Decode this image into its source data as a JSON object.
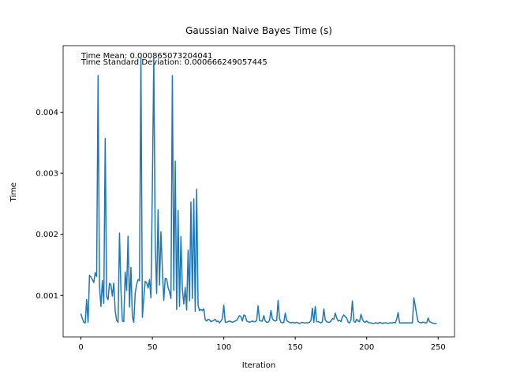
{
  "chart_data": {
    "type": "line",
    "title": "Gaussian Naive Bayes Time (s)",
    "xlabel": "Iteration",
    "ylabel": "Time",
    "annotations": [
      "Time Mean: 0.000865073204041",
      "Time Standard Deviation: 0.000666249057445"
    ],
    "x": [
      0,
      1,
      2,
      3,
      4,
      5,
      6,
      7,
      8,
      9,
      10,
      11,
      12,
      13,
      14,
      15,
      16,
      17,
      18,
      19,
      20,
      21,
      22,
      23,
      24,
      25,
      26,
      27,
      28,
      29,
      30,
      31,
      32,
      33,
      34,
      35,
      36,
      37,
      38,
      39,
      40,
      41,
      42,
      43,
      44,
      45,
      46,
      47,
      48,
      49,
      50,
      51,
      52,
      53,
      54,
      55,
      56,
      57,
      58,
      59,
      60,
      61,
      62,
      63,
      64,
      65,
      66,
      67,
      68,
      69,
      70,
      71,
      72,
      73,
      74,
      75,
      76,
      77,
      78,
      79,
      80,
      81,
      82,
      83,
      84,
      85,
      86,
      87,
      88,
      89,
      90,
      91,
      92,
      93,
      94,
      95,
      96,
      97,
      98,
      99,
      100,
      101,
      102,
      103,
      104,
      105,
      106,
      107,
      108,
      109,
      110,
      111,
      112,
      113,
      114,
      115,
      116,
      117,
      118,
      119,
      120,
      121,
      122,
      123,
      124,
      125,
      126,
      127,
      128,
      129,
      130,
      131,
      132,
      133,
      134,
      135,
      136,
      137,
      138,
      139,
      140,
      141,
      142,
      143,
      144,
      145,
      146,
      147,
      148,
      149,
      150,
      151,
      152,
      153,
      154,
      155,
      156,
      157,
      158,
      159,
      160,
      161,
      162,
      163,
      164,
      165,
      166,
      167,
      168,
      169,
      170,
      171,
      172,
      173,
      174,
      175,
      176,
      177,
      178,
      179,
      180,
      181,
      182,
      183,
      184,
      185,
      186,
      187,
      188,
      189,
      190,
      191,
      192,
      193,
      194,
      195,
      196,
      197,
      198,
      199,
      200,
      201,
      202,
      203,
      204,
      205,
      206,
      207,
      208,
      209,
      210,
      211,
      212,
      213,
      214,
      215,
      216,
      217,
      218,
      219,
      220,
      221,
      222,
      223,
      224,
      225,
      226,
      227,
      228,
      229,
      230,
      231,
      232,
      233,
      234,
      235,
      236,
      237,
      238,
      239,
      240,
      241,
      242,
      243,
      244,
      245,
      246,
      247,
      248,
      249
    ],
    "series": [
      {
        "color": "#1f77b4",
        "values": [
          0.0007,
          0.00062,
          0.00056,
          0.00055,
          0.00093,
          0.00056,
          0.00133,
          0.0013,
          0.00126,
          0.00121,
          0.00137,
          0.00131,
          0.0046,
          0.00115,
          0.00082,
          0.00124,
          0.00087,
          0.00357,
          0.00098,
          0.00093,
          0.0012,
          0.00117,
          0.00099,
          0.0012,
          0.00074,
          0.00059,
          0.00056,
          0.00202,
          0.0011,
          0.00058,
          0.00057,
          0.00138,
          0.00108,
          0.00197,
          0.00081,
          0.00146,
          0.00065,
          0.00056,
          0.00104,
          0.00118,
          0.00126,
          0.00124,
          0.0049,
          0.00064,
          0.00096,
          0.00123,
          0.00121,
          0.00112,
          0.00126,
          0.00096,
          0.00278,
          0.0049,
          0.00186,
          0.00103,
          0.0024,
          0.00117,
          0.00204,
          0.00142,
          0.00092,
          0.00128,
          0.00127,
          0.00113,
          0.00106,
          0.00095,
          0.0046,
          0.00108,
          0.0032,
          0.00077,
          0.00239,
          0.00082,
          0.00196,
          0.0011,
          0.00086,
          0.00113,
          0.00076,
          0.00174,
          0.00091,
          0.00253,
          0.00095,
          0.00258,
          0.00074,
          0.00274,
          0.00084,
          0.00075,
          0.00077,
          0.00075,
          0.00078,
          0.0006,
          0.00058,
          0.00061,
          0.0006,
          0.00057,
          0.00058,
          0.00059,
          0.00061,
          0.00057,
          0.00058,
          0.00055,
          0.00058,
          0.00062,
          0.00084,
          0.00056,
          0.00056,
          0.00057,
          0.00058,
          0.00057,
          0.00056,
          0.00057,
          0.00058,
          0.00059,
          0.00063,
          0.00067,
          0.00065,
          0.00058,
          0.00068,
          0.00067,
          0.00058,
          0.00057,
          0.00056,
          0.00057,
          0.00058,
          0.00057,
          0.00057,
          0.00059,
          0.00083,
          0.00059,
          0.00058,
          0.00058,
          0.00067,
          0.00058,
          0.00056,
          0.00056,
          0.00059,
          0.00075,
          0.00062,
          0.00059,
          0.00058,
          0.00059,
          0.00092,
          0.00062,
          0.00056,
          0.00055,
          0.00056,
          0.00071,
          0.00059,
          0.00057,
          0.00056,
          0.00055,
          0.00056,
          0.00055,
          0.00055,
          0.00056,
          0.00055,
          0.00054,
          0.00055,
          0.00056,
          0.00055,
          0.00055,
          0.00055,
          0.00055,
          0.00056,
          0.00059,
          0.00079,
          0.00056,
          0.00082,
          0.00057,
          0.00057,
          0.00056,
          0.00055,
          0.00057,
          0.00078,
          0.0006,
          0.00057,
          0.00056,
          0.00056,
          0.00058,
          0.00062,
          0.00061,
          0.00071,
          0.00063,
          0.00058,
          0.00059,
          0.00057,
          0.00065,
          0.00068,
          0.00065,
          0.00063,
          0.00056,
          0.00055,
          0.0006,
          0.00091,
          0.00058,
          0.00056,
          0.00061,
          0.00058,
          0.00057,
          0.00069,
          0.00061,
          0.00057,
          0.00056,
          0.00058,
          0.00056,
          0.00055,
          0.00055,
          0.00054,
          0.00054,
          0.00055,
          0.00055,
          0.00054,
          0.00056,
          0.00055,
          0.00054,
          0.00055,
          0.00055,
          0.00055,
          0.00054,
          0.00055,
          0.00055,
          0.00055,
          0.00056,
          0.00055,
          0.00061,
          0.00072,
          0.00055,
          0.00055,
          0.00055,
          0.00055,
          0.00055,
          0.00055,
          0.00055,
          0.00055,
          0.00055,
          0.00055,
          0.00096,
          0.00083,
          0.00068,
          0.00057,
          0.00056,
          0.00055,
          0.00056,
          0.00056,
          0.00055,
          0.00055,
          0.00063,
          0.00057,
          0.00056,
          0.00055,
          0.00054,
          0.00054,
          0.00054
        ]
      }
    ],
    "xlim": [
      -12.45,
      261.45
    ],
    "xticks": [
      0,
      50,
      100,
      150,
      200,
      250
    ],
    "ylim": [
      0.00032,
      0.00509
    ],
    "yticks": [
      0.001,
      0.002,
      0.003,
      0.004
    ],
    "grid": false
  }
}
